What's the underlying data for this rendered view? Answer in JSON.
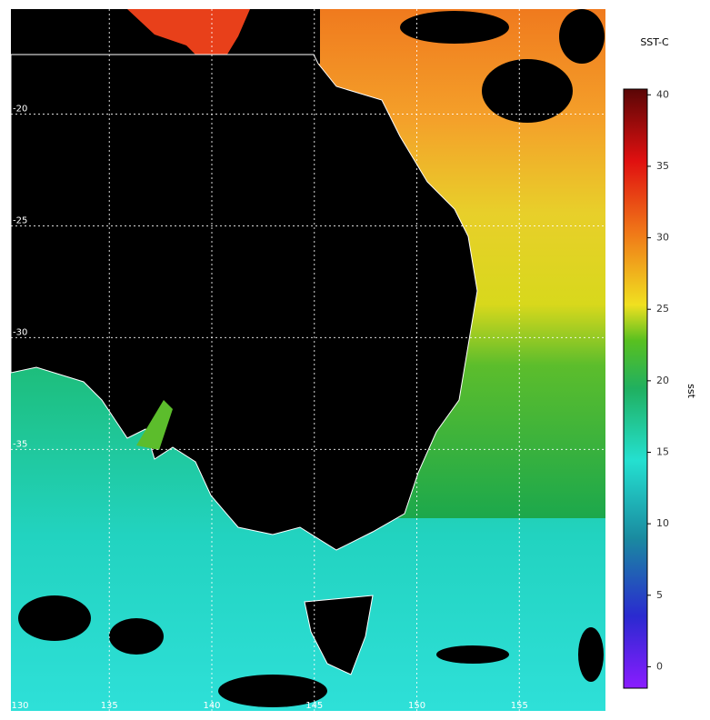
{
  "title": "SST-C",
  "colorbar": {
    "label": "sst",
    "lim": [
      -1.5,
      40.4
    ],
    "ticks": [
      0,
      5,
      10,
      15,
      20,
      25,
      30,
      35,
      40
    ]
  },
  "map": {
    "latlim": [
      -15.3,
      -46.7
    ],
    "lonlim": [
      130.2,
      159.2
    ],
    "lat_labels": [
      -20,
      -25,
      -30,
      -35
    ],
    "lon_labels": [
      130,
      135,
      140,
      145,
      150,
      155
    ]
  }
}
